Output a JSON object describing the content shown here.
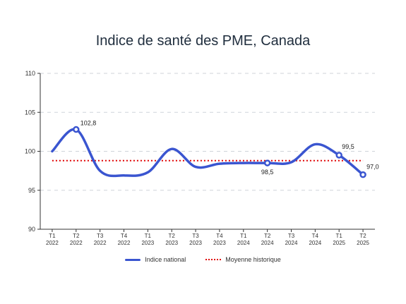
{
  "chart_data": {
    "type": "line",
    "title": "Indice de santé des PME, Canada",
    "xlabel": "",
    "ylabel": "",
    "ylim": [
      90,
      110
    ],
    "yticks": [
      90,
      95,
      100,
      105,
      110
    ],
    "grid": "horizontal-dashed",
    "legend_position": "bottom-center",
    "categories": [
      [
        "T1",
        "2022"
      ],
      [
        "T2",
        "2022"
      ],
      [
        "T3",
        "2022"
      ],
      [
        "T4",
        "2022"
      ],
      [
        "T1",
        "2023"
      ],
      [
        "T2",
        "2023"
      ],
      [
        "T3",
        "2023"
      ],
      [
        "T4",
        "2023"
      ],
      [
        "T1",
        "2024"
      ],
      [
        "T2",
        "2024"
      ],
      [
        "T3",
        "2024"
      ],
      [
        "T4",
        "2024"
      ],
      [
        "T1",
        "2025"
      ],
      [
        "T2",
        "2025"
      ]
    ],
    "series": [
      {
        "name": "Indice national",
        "color": "#3a55d0",
        "values": [
          100.0,
          102.8,
          97.5,
          96.9,
          97.3,
          100.3,
          98.0,
          98.4,
          98.5,
          98.5,
          98.6,
          100.9,
          99.5,
          97.0
        ]
      },
      {
        "name": "Moyenne historique",
        "color": "#e00000",
        "style": "dotted",
        "values": [
          98.8,
          98.8,
          98.8,
          98.8,
          98.8,
          98.8,
          98.8,
          98.8,
          98.8,
          98.8,
          98.8,
          98.8,
          98.8,
          98.8
        ]
      }
    ],
    "annotations": [
      {
        "index": 1,
        "text": "102,8"
      },
      {
        "index": 9,
        "text": "98,5"
      },
      {
        "index": 12,
        "text": "99,5"
      },
      {
        "index": 13,
        "text": "97,0"
      }
    ]
  }
}
